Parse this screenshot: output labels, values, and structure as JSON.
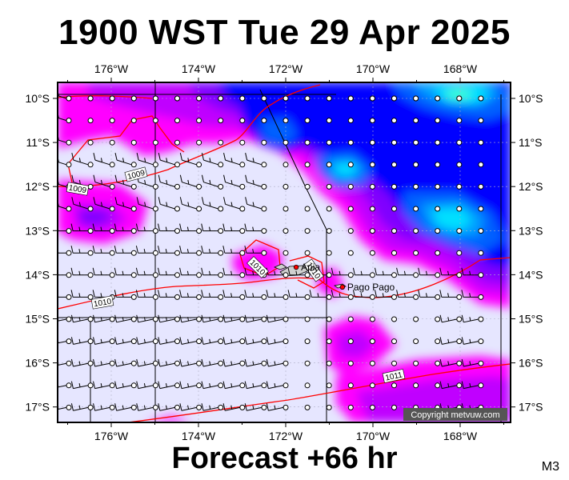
{
  "title": "1900 WST Tue 29 Apr 2025",
  "forecast": "Forecast +66 hr",
  "model_code": "M3",
  "copyright": "Copyright metvuw.com",
  "lon_labels": [
    "176°W",
    "174°W",
    "172°W",
    "170°W",
    "168°W"
  ],
  "lat_labels": [
    "10°S",
    "11°S",
    "12°S",
    "13°S",
    "14°S",
    "15°S",
    "16°S",
    "17°S"
  ],
  "cities": [
    {
      "name": "Apia",
      "lon": -171.76,
      "lat": -13.83
    },
    {
      "name": "Pago Pago",
      "lon": -170.7,
      "lat": -14.28
    }
  ],
  "isobar_labels": [
    "1009",
    "1009",
    "1010",
    "1010",
    "1010",
    "1011"
  ],
  "colors": {
    "background_fill": "#e6e6ff",
    "magenta": "#ff00ff",
    "violet": "#c000ff",
    "purple": "#8000ff",
    "blue": "#0000ff",
    "mid_blue": "#0060ff",
    "light_blue": "#00a0ff",
    "cyan": "#00e0ff",
    "aqua": "#40ffd0",
    "isobar": "#ff0000"
  }
}
